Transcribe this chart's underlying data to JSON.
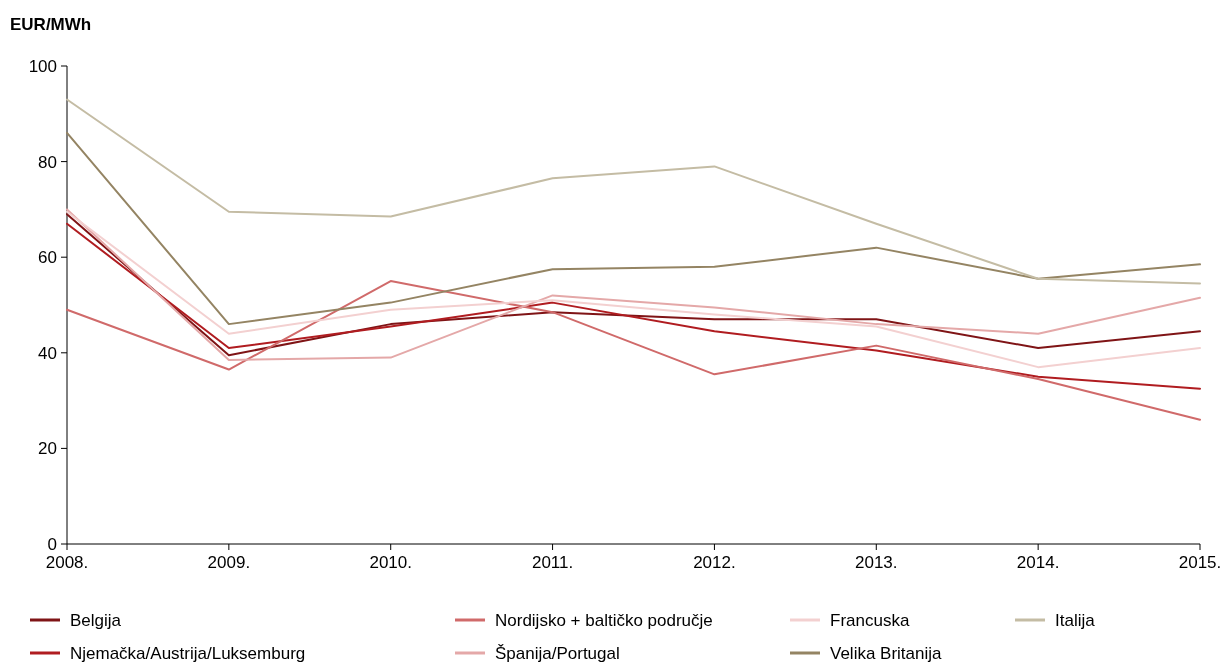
{
  "chart_data": {
    "type": "line",
    "ylabel": "EUR/MWh",
    "categories": [
      "2008.",
      "2009.",
      "2010.",
      "2011.",
      "2012.",
      "2013.",
      "2014.",
      "2015."
    ],
    "series": [
      {
        "name": "Belgija",
        "color": "#7f1416",
        "values": [
          69,
          39.5,
          46,
          48.5,
          47,
          47,
          41,
          44.5
        ]
      },
      {
        "name": "Njemačka/Austrija/Luksemburg",
        "color": "#b01c20",
        "values": [
          67,
          41,
          45.5,
          50.5,
          44.5,
          40.5,
          35,
          32.5
        ]
      },
      {
        "name": "Nordijsko + baltičko područje",
        "color": "#d06a6a",
        "values": [
          49,
          36.5,
          55,
          48.5,
          35.5,
          41.5,
          34.5,
          26
        ]
      },
      {
        "name": "Španija/Portugal",
        "color": "#e4a8a8",
        "values": [
          70,
          38.5,
          39,
          52,
          49.5,
          46,
          44,
          51.5
        ]
      },
      {
        "name": "Francuska",
        "color": "#f3d0d0",
        "values": [
          69.5,
          44,
          49,
          51,
          48,
          45.5,
          37,
          41
        ]
      },
      {
        "name": "Velika Britanija",
        "color": "#948463",
        "values": [
          86,
          46,
          50.5,
          57.5,
          58,
          62,
          55.5,
          58.5
        ]
      },
      {
        "name": "Italija",
        "color": "#c4bca4",
        "values": [
          93,
          69.5,
          68.5,
          76.5,
          79,
          67,
          55.5,
          54.5
        ]
      }
    ],
    "ylim": [
      0,
      100
    ],
    "yticks": [
      0,
      20,
      40,
      60,
      80,
      100
    ],
    "legend": "bottom",
    "grid": false
  }
}
